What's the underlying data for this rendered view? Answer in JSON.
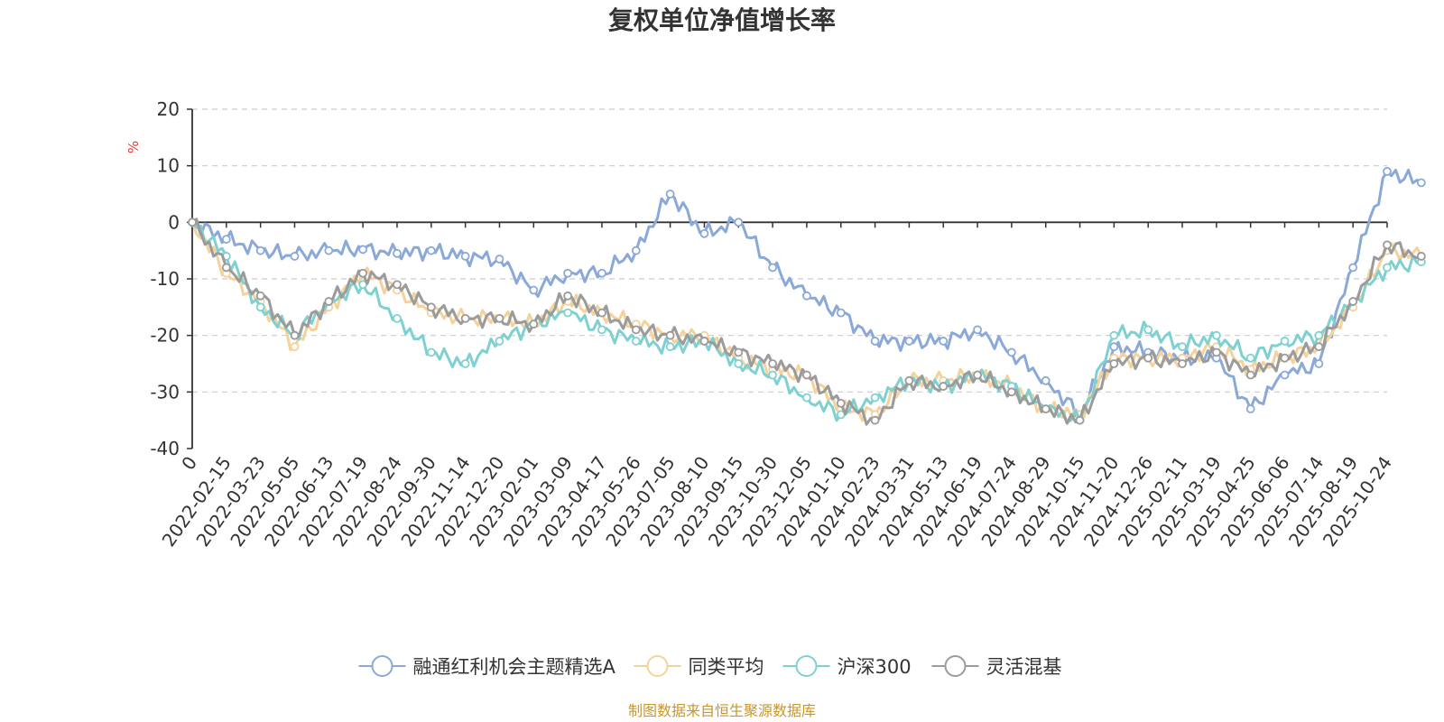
{
  "chart_data": {
    "type": "line",
    "title": "复权单位净值增长率",
    "ylabel": "%",
    "ylim": [
      -40,
      20
    ],
    "yticks": [
      -40,
      -30,
      -20,
      -10,
      0,
      10,
      20
    ],
    "grid": true,
    "legend_position": "bottom",
    "source": "制图数据来自恒生聚源数据库",
    "x_ticks": [
      "0",
      "2022-02-15",
      "2022-03-23",
      "2022-05-05",
      "2022-06-13",
      "2022-07-19",
      "2022-08-24",
      "2022-09-30",
      "2022-11-14",
      "2022-12-20",
      "2023-02-01",
      "2023-03-09",
      "2023-04-17",
      "2023-05-26",
      "2023-07-05",
      "2023-08-10",
      "2023-09-15",
      "2023-10-30",
      "2023-12-05",
      "2024-01-10",
      "2024-02-23",
      "2024-03-31",
      "2024-05-13",
      "2024-06-19",
      "2024-07-24",
      "2024-08-29",
      "2024-10-15",
      "2024-11-20",
      "2024-12-26",
      "2025-02-11",
      "2025-03-19",
      "2025-04-25",
      "2025-06-06",
      "2025-07-14",
      "2025-08-19",
      "2025-10-24"
    ],
    "series": [
      {
        "name": "融通红利机会主题精选A",
        "color": "#8aa9d8",
        "values": [
          0,
          -3,
          -5,
          -6,
          -5,
          -4.8,
          -5.5,
          -5,
          -6,
          -6.5,
          -12,
          -9,
          -9,
          -5,
          5,
          -2,
          0,
          -8,
          -13,
          -16,
          -21,
          -21,
          -21,
          -19,
          -23,
          -28,
          -34,
          -22,
          -23,
          -24,
          -24,
          -33,
          -27,
          -25,
          -8,
          9,
          7
        ]
      },
      {
        "name": "同类平均",
        "color": "#f5d29b",
        "values": [
          0,
          -9,
          -14,
          -22,
          -15,
          -9,
          -12,
          -16,
          -17,
          -17,
          -18,
          -14,
          -16,
          -18,
          -20,
          -20,
          -24,
          -26,
          -27,
          -33,
          -34,
          -28,
          -28,
          -27,
          -29,
          -33,
          -34,
          -24,
          -24,
          -24,
          -22,
          -26,
          -24,
          -22,
          -15,
          -5,
          -6
        ]
      },
      {
        "name": "沪深300",
        "color": "#7fd1d1",
        "values": [
          0,
          -6,
          -15,
          -20,
          -14,
          -11,
          -17,
          -23,
          -25,
          -21,
          -18,
          -16,
          -19,
          -21,
          -22,
          -21,
          -25,
          -27,
          -31,
          -34,
          -31,
          -28,
          -29,
          -27,
          -29,
          -33,
          -35,
          -20,
          -19,
          -22,
          -20,
          -24,
          -21,
          -20,
          -14,
          -8,
          -7
        ]
      },
      {
        "name": "灵活混基",
        "color": "#9b9b9b",
        "values": [
          0,
          -8,
          -13,
          -20,
          -14,
          -9,
          -11,
          -15,
          -17,
          -17,
          -18,
          -13,
          -16,
          -19,
          -20,
          -21,
          -23,
          -25,
          -27,
          -32,
          -35,
          -28,
          -29,
          -27,
          -30,
          -33,
          -35,
          -25,
          -24,
          -25,
          -23,
          -27,
          -24,
          -22,
          -14,
          -4,
          -6
        ]
      }
    ]
  }
}
